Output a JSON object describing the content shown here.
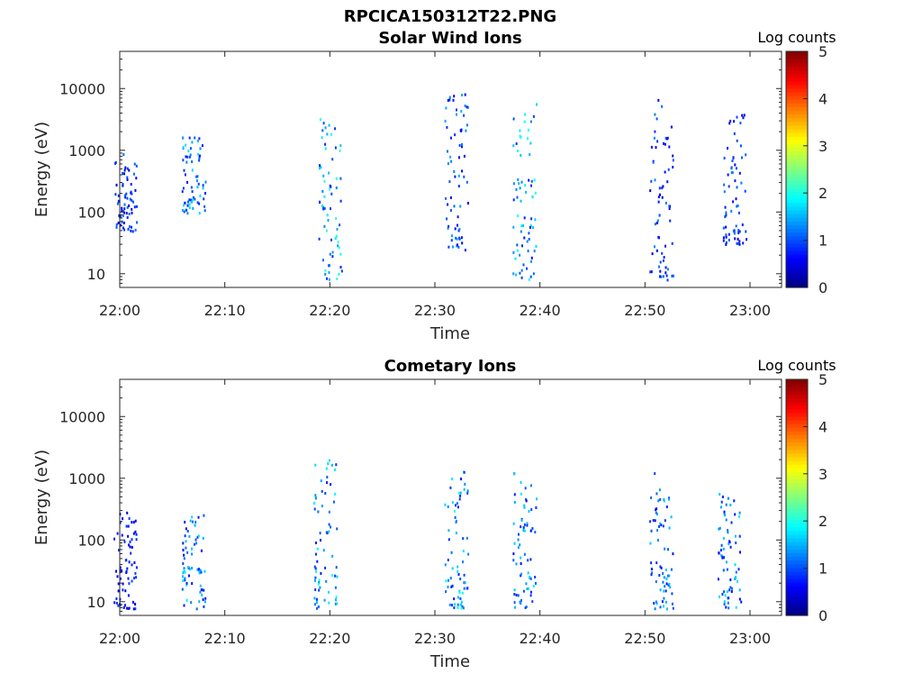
{
  "figure": {
    "title": "RPCICA150312T22.PNG"
  },
  "colorbar": {
    "label": "Log counts",
    "range": [
      0,
      5
    ],
    "ticks": [
      "0",
      "1",
      "2",
      "3",
      "4",
      "5"
    ],
    "colormap": "jet"
  },
  "chart_data": [
    {
      "type": "heatmap",
      "title": "Solar Wind Ions",
      "xlabel": "Time",
      "ylabel": "Energy (eV)",
      "y_scale": "log",
      "xlim": [
        "22:00",
        "23:03"
      ],
      "ylim": [
        6,
        40000
      ],
      "x_ticks": [
        "22:00",
        "22:10",
        "22:20",
        "22:30",
        "22:40",
        "22:50",
        "23:00"
      ],
      "y_ticks": [
        "10",
        "100",
        "1000",
        "10000"
      ],
      "clusters": [
        {
          "time": "22:00.5",
          "energy_range": [
            50,
            900
          ],
          "peak_log_counts": 1.2
        },
        {
          "time": "22:07",
          "energy_range": [
            100,
            1700
          ],
          "peak_log_counts": 1.8
        },
        {
          "time": "22:20",
          "energy_range": [
            8,
            3500
          ],
          "peak_log_counts": 2.2
        },
        {
          "time": "22:32",
          "energy_range": [
            25,
            10000
          ],
          "peak_log_counts": 1.5
        },
        {
          "time": "22:38.5",
          "energy_range": [
            8,
            7000
          ],
          "peak_log_counts": 2.0
        },
        {
          "time": "22:51.5",
          "energy_range": [
            8,
            7000
          ],
          "peak_log_counts": 1.3
        },
        {
          "time": "22:58.5",
          "energy_range": [
            30,
            5000
          ],
          "peak_log_counts": 1.3
        }
      ]
    },
    {
      "type": "heatmap",
      "title": "Cometary Ions",
      "xlabel": "Time",
      "ylabel": "Energy (eV)",
      "y_scale": "log",
      "xlim": [
        "22:00",
        "23:03"
      ],
      "ylim": [
        6,
        40000
      ],
      "x_ticks": [
        "22:00",
        "22:10",
        "22:20",
        "22:30",
        "22:40",
        "22:50",
        "23:00"
      ],
      "y_ticks": [
        "10",
        "100",
        "1000",
        "10000"
      ],
      "clusters": [
        {
          "time": "22:00.5",
          "energy_range": [
            8,
            300
          ],
          "peak_log_counts": 1.0
        },
        {
          "time": "22:07",
          "energy_range": [
            8,
            300
          ],
          "peak_log_counts": 1.8
        },
        {
          "time": "22:19.5",
          "energy_range": [
            8,
            2200
          ],
          "peak_log_counts": 2.0
        },
        {
          "time": "22:32",
          "energy_range": [
            8,
            1500
          ],
          "peak_log_counts": 2.0
        },
        {
          "time": "22:38.5",
          "energy_range": [
            8,
            1400
          ],
          "peak_log_counts": 1.8
        },
        {
          "time": "22:51.5",
          "energy_range": [
            8,
            1500
          ],
          "peak_log_counts": 1.7
        },
        {
          "time": "22:58",
          "energy_range": [
            8,
            600
          ],
          "peak_log_counts": 1.8
        }
      ]
    }
  ]
}
